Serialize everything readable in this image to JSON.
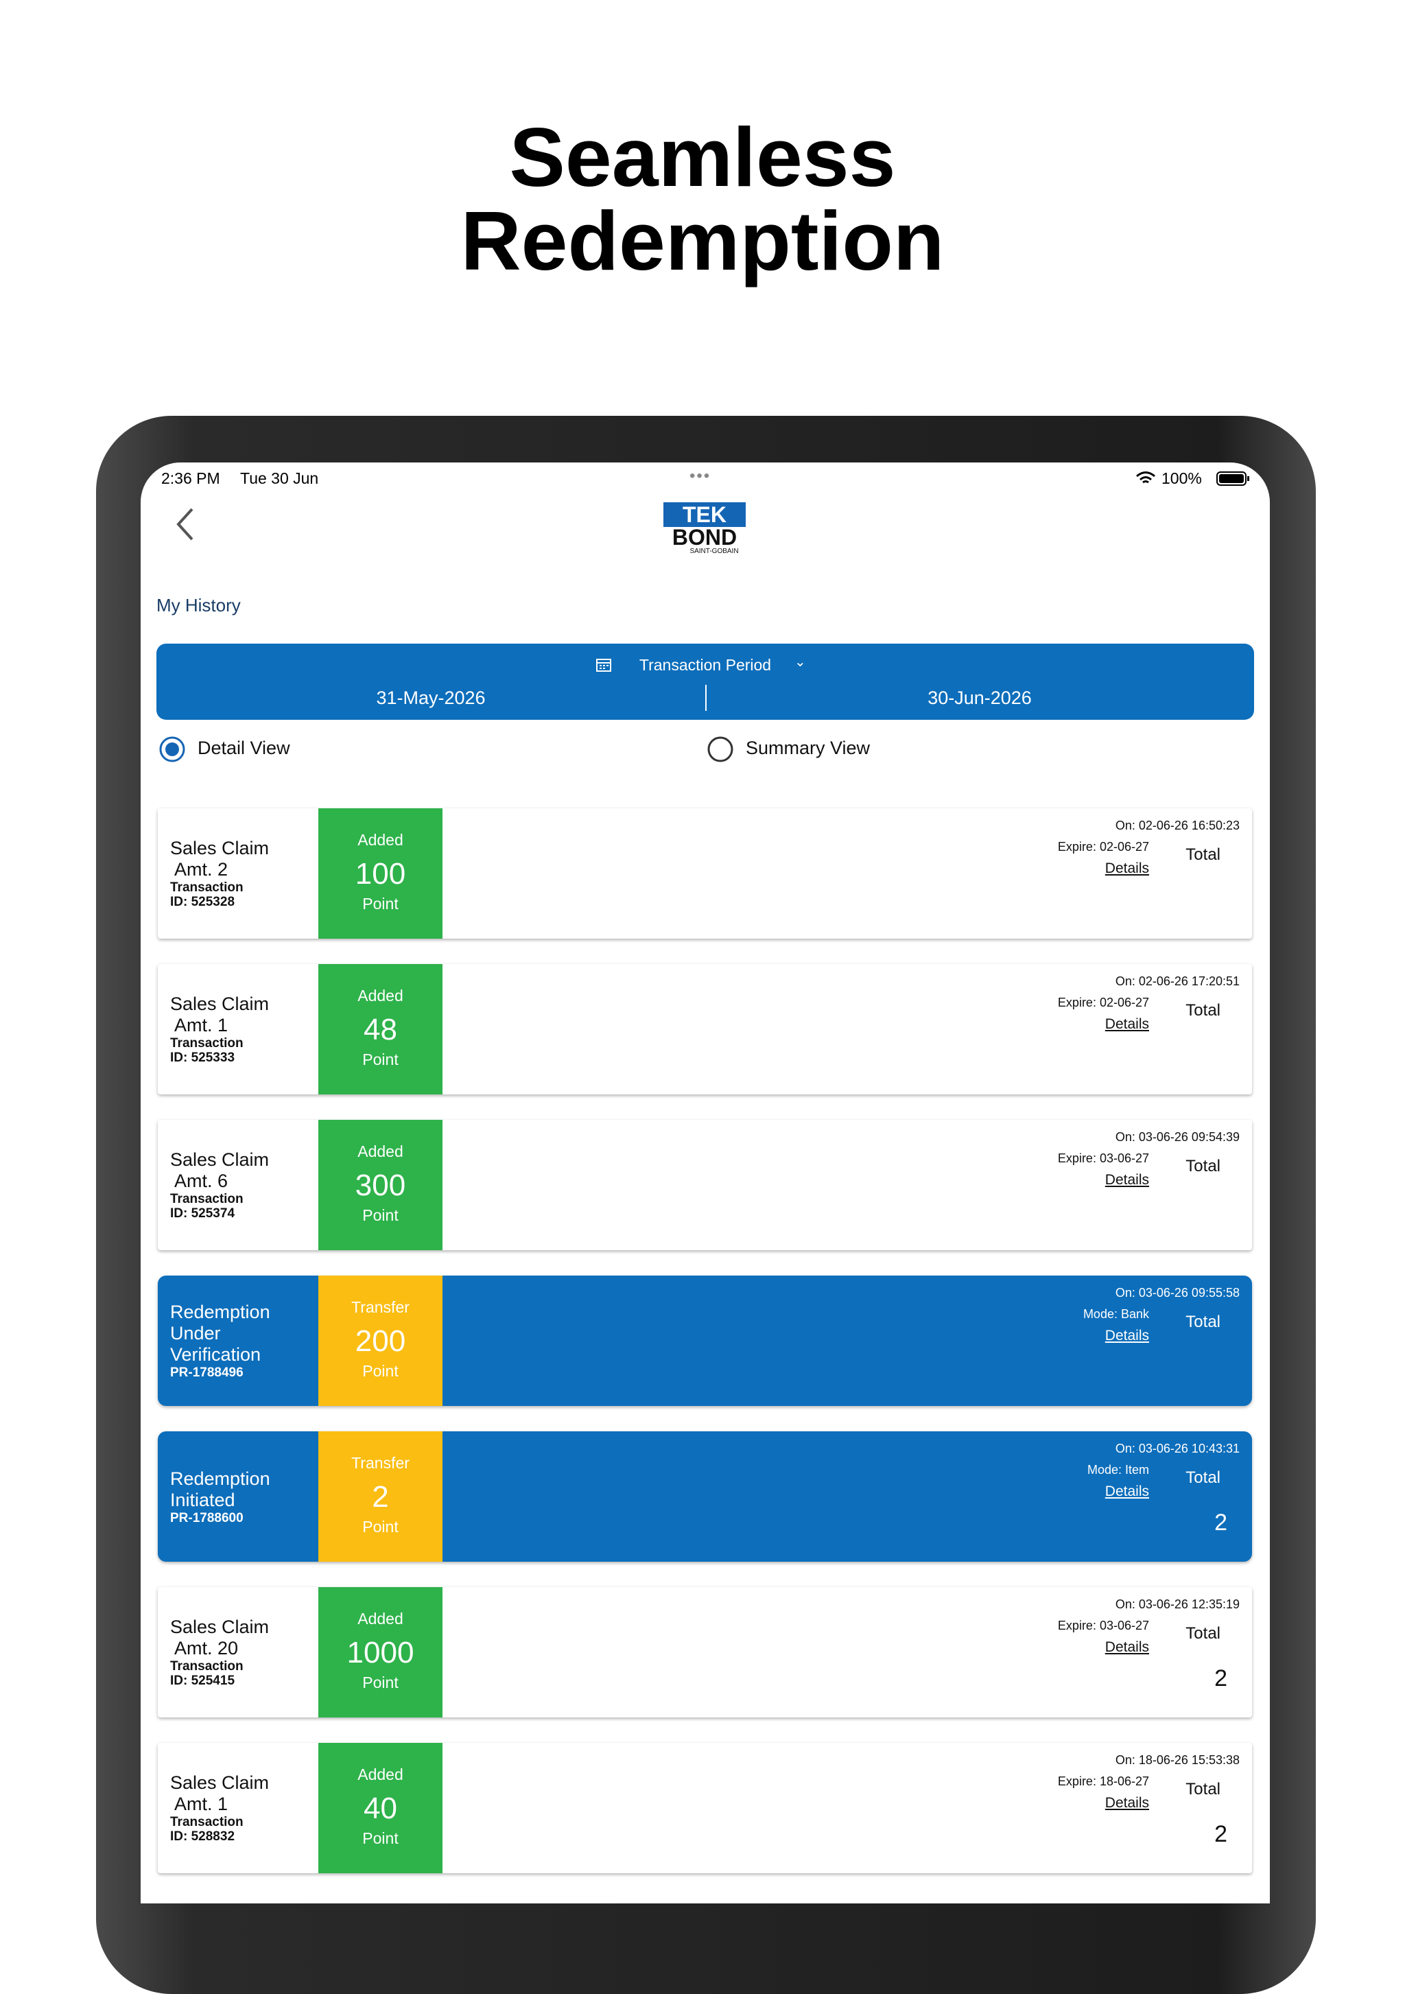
{
  "headline": {
    "line1": "Seamless",
    "line2": "Redemption"
  },
  "status_bar": {
    "time": "2:36 PM",
    "date": "Tue 30 Jun",
    "battery": "100%"
  },
  "logo": {
    "top": "TEK",
    "bottom": "BOND",
    "sub": "SAINT-GOBAIN"
  },
  "page_title": "My History",
  "period": {
    "label": "Transaction Period",
    "from": "31-May-2026",
    "to": "30-Jun-2026"
  },
  "views": {
    "detail": "Detail View",
    "summary": "Summary View"
  },
  "transactions": [
    {
      "kind": "claim",
      "title_lines": [
        "Sales Claim",
        " Amt. 2"
      ],
      "id_lines": [
        "Transaction",
        "ID: 525328"
      ],
      "badge": "Added",
      "amount": "100",
      "unit": "Point",
      "on": "On: 02-06-26 16:50:23",
      "meta": "Expire: 02-06-27",
      "details": "Details",
      "total": "Total"
    },
    {
      "kind": "claim",
      "title_lines": [
        "Sales Claim",
        " Amt. 1"
      ],
      "id_lines": [
        "Transaction",
        "ID: 525333"
      ],
      "badge": "Added",
      "amount": "48",
      "unit": "Point",
      "on": "On: 02-06-26 17:20:51",
      "meta": "Expire: 02-06-27",
      "details": "Details",
      "total": "Total"
    },
    {
      "kind": "claim",
      "title_lines": [
        "Sales Claim",
        " Amt. 6"
      ],
      "id_lines": [
        "Transaction",
        "ID: 525374"
      ],
      "badge": "Added",
      "amount": "300",
      "unit": "Point",
      "on": "On: 03-06-26 09:54:39",
      "meta": "Expire: 03-06-27",
      "details": "Details",
      "total": "Total"
    },
    {
      "kind": "redeem",
      "title_lines": [
        "Redemption",
        "Under",
        "Verification"
      ],
      "id_lines": [
        "PR-1788496"
      ],
      "badge": "Transfer",
      "amount": "200",
      "unit": "Point",
      "on": "On: 03-06-26 09:55:58",
      "meta": "Mode: Bank",
      "details": "Details",
      "total": "Total"
    },
    {
      "kind": "redeem",
      "title_lines": [
        "Redemption",
        "Initiated"
      ],
      "id_lines": [
        "PR-1788600"
      ],
      "badge": "Transfer",
      "amount": "2",
      "unit": "Point",
      "on": "On: 03-06-26 10:43:31",
      "meta": "Mode: Item",
      "details": "Details",
      "total": "Total",
      "total_value": "2"
    },
    {
      "kind": "claim",
      "title_lines": [
        "Sales Claim",
        " Amt. 20"
      ],
      "id_lines": [
        "Transaction",
        "ID: 525415"
      ],
      "badge": "Added",
      "amount": "1000",
      "unit": "Point",
      "on": "On: 03-06-26 12:35:19",
      "meta": "Expire: 03-06-27",
      "details": "Details",
      "total": "Total",
      "total_value": "2"
    },
    {
      "kind": "claim",
      "title_lines": [
        "Sales Claim",
        " Amt. 1"
      ],
      "id_lines": [
        "Transaction",
        "ID: 528832"
      ],
      "badge": "Added",
      "amount": "40",
      "unit": "Point",
      "on": "On: 18-06-26 15:53:38",
      "meta": "Expire: 18-06-27",
      "details": "Details",
      "total": "Total",
      "total_value": "2"
    }
  ]
}
